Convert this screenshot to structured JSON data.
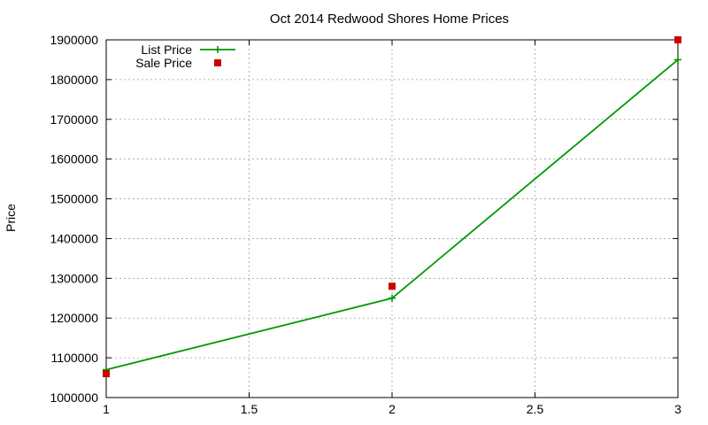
{
  "chart_data": {
    "type": "line",
    "title": "Oct 2014 Redwood Shores Home Prices",
    "xlabel": "",
    "ylabel": "Price",
    "xlim": [
      1,
      3
    ],
    "ylim": [
      1000000,
      1900000
    ],
    "x_ticks": [
      1,
      1.5,
      2,
      2.5,
      3
    ],
    "x_tick_labels": [
      "1",
      "1.5",
      "2",
      "2.5",
      "3"
    ],
    "y_ticks": [
      1000000,
      1100000,
      1200000,
      1300000,
      1400000,
      1500000,
      1600000,
      1700000,
      1800000,
      1900000
    ],
    "y_tick_labels": [
      "1000000",
      "1100000",
      "1200000",
      "1300000",
      "1400000",
      "1500000",
      "1600000",
      "1700000",
      "1800000",
      "1900000"
    ],
    "grid": true,
    "legend_position": "top-left",
    "series": [
      {
        "name": "List Price",
        "style": "line+points",
        "marker": "plus",
        "color": "#009900",
        "x": [
          1,
          2,
          3
        ],
        "y": [
          1070000,
          1250000,
          1850000
        ]
      },
      {
        "name": "Sale Price",
        "style": "points",
        "marker": "square",
        "color": "#cc0000",
        "x": [
          1,
          2,
          3
        ],
        "y": [
          1060000,
          1280000,
          1900000
        ]
      }
    ]
  }
}
